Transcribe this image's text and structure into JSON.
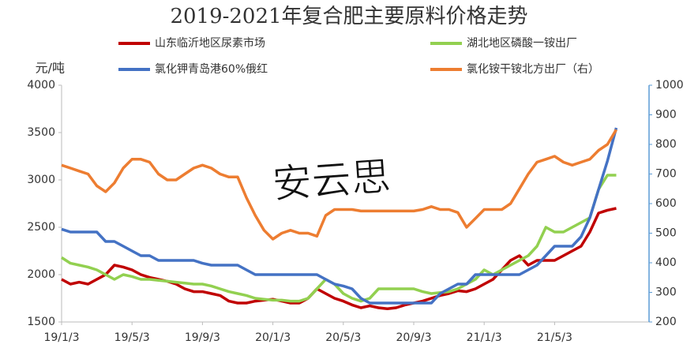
{
  "chart_data": {
    "type": "line",
    "title": "2019-2021年复合肥主要原料价格走势",
    "y_label": "元/吨",
    "annotation": "安云思",
    "legend": "top",
    "grid": false,
    "categories": [
      "19/1/3",
      null,
      null,
      null,
      null,
      null,
      null,
      null,
      "19/5/3",
      null,
      null,
      null,
      null,
      null,
      null,
      null,
      "19/9/3",
      null,
      null,
      null,
      null,
      null,
      null,
      null,
      "20/1/3",
      null,
      null,
      null,
      null,
      null,
      null,
      null,
      "20/5/3",
      null,
      null,
      null,
      null,
      null,
      null,
      null,
      "20/9/3",
      null,
      null,
      null,
      null,
      null,
      null,
      null,
      "21/1/3",
      null,
      null,
      null,
      null,
      null,
      null,
      null,
      "21/5/3",
      null,
      null,
      null,
      null,
      null,
      null,
      null
    ],
    "ylim": [
      1500,
      4000
    ],
    "yticks": [
      1500,
      2000,
      2500,
      3000,
      3500,
      4000
    ],
    "y2lim": [
      200,
      1000
    ],
    "y2ticks": [
      200,
      300,
      400,
      500,
      600,
      700,
      800,
      900,
      1000
    ],
    "series": [
      {
        "name": "山东临沂地区尿素市场",
        "color": "#c00000",
        "values": [
          1950,
          1900,
          1920,
          1900,
          1950,
          2000,
          2100,
          2080,
          2050,
          2000,
          1970,
          1950,
          1930,
          1900,
          1850,
          1820,
          1820,
          1800,
          1780,
          1720,
          1700,
          1700,
          1720,
          1730,
          1740,
          1720,
          1700,
          1700,
          1750,
          1850,
          1800,
          1750,
          1720,
          1680,
          1650,
          1670,
          1650,
          1640,
          1650,
          1680,
          1700,
          1720,
          1750,
          1780,
          1800,
          1830,
          1820,
          1850,
          1900,
          1950,
          2050,
          2150,
          2200,
          2100,
          2150,
          2150,
          2150,
          2200,
          2250,
          2300,
          2450,
          2650,
          2680,
          2700
        ]
      },
      {
        "name": "湖北地区磷酸一铵出厂",
        "color": "#92d050",
        "values": [
          2180,
          2120,
          2100,
          2080,
          2050,
          2000,
          1950,
          2000,
          1980,
          1950,
          1950,
          1940,
          1930,
          1920,
          1910,
          1900,
          1900,
          1880,
          1850,
          1820,
          1800,
          1780,
          1750,
          1740,
          1730,
          1730,
          1720,
          1720,
          1750,
          1850,
          1950,
          1900,
          1800,
          1750,
          1720,
          1750,
          1850,
          1850,
          1850,
          1850,
          1850,
          1820,
          1800,
          1810,
          1820,
          1850,
          1900,
          1950,
          2050,
          2000,
          2050,
          2100,
          2150,
          2200,
          2300,
          2500,
          2450,
          2450,
          2500,
          2550,
          2600,
          2900,
          3050,
          3050
        ]
      },
      {
        "name": "氯化钾青岛港60%俄红",
        "color": "#4472c4",
        "values": [
          2480,
          2450,
          2450,
          2450,
          2450,
          2350,
          2350,
          2300,
          2250,
          2200,
          2200,
          2150,
          2150,
          2150,
          2150,
          2150,
          2120,
          2100,
          2100,
          2100,
          2100,
          2050,
          2000,
          2000,
          2000,
          2000,
          2000,
          2000,
          2000,
          2000,
          1950,
          1900,
          1880,
          1850,
          1750,
          1700,
          1700,
          1700,
          1700,
          1700,
          1700,
          1700,
          1700,
          1800,
          1850,
          1900,
          1900,
          2000,
          2000,
          2000,
          2000,
          2000,
          2000,
          2050,
          2100,
          2200,
          2300,
          2300,
          2300,
          2400,
          2600,
          2900,
          3200,
          3550
        ]
      },
      {
        "name": "氯化铵干铵北方出厂（右）",
        "color": "#ed7d31",
        "axis": "y2",
        "values": [
          730,
          720,
          710,
          700,
          660,
          640,
          670,
          720,
          750,
          750,
          740,
          700,
          680,
          680,
          700,
          720,
          730,
          720,
          700,
          690,
          690,
          620,
          560,
          510,
          480,
          500,
          510,
          500,
          500,
          490,
          560,
          580,
          580,
          580,
          575,
          575,
          575,
          575,
          575,
          575,
          575,
          580,
          590,
          580,
          580,
          570,
          520,
          550,
          580,
          580,
          580,
          600,
          650,
          700,
          740,
          750,
          760,
          740,
          730,
          740,
          750,
          780,
          800,
          850
        ]
      }
    ]
  }
}
